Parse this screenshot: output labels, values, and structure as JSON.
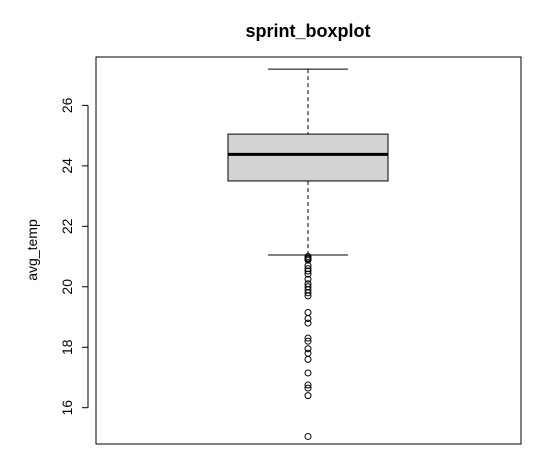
{
  "chart_data": {
    "type": "boxplot",
    "title": "sprint_boxplot",
    "xlabel": "",
    "ylabel": "avg_temp",
    "ylim": [
      14.8,
      27.6
    ],
    "yticks": [
      16,
      18,
      20,
      22,
      24,
      26
    ],
    "ytick_labels": [
      "16",
      "18",
      "20",
      "22",
      "24",
      "26"
    ],
    "grid": false,
    "box": {
      "whisker_low": 21.05,
      "q1": 23.5,
      "median": 24.38,
      "q3": 25.05,
      "whisker_high": 27.2,
      "fill_color": "#d3d3d3"
    },
    "outliers": [
      21.0,
      20.95,
      20.92,
      20.88,
      20.7,
      20.6,
      20.52,
      20.42,
      20.25,
      20.1,
      20.0,
      19.9,
      19.8,
      19.7,
      19.15,
      18.95,
      18.8,
      18.3,
      18.2,
      17.95,
      17.8,
      17.6,
      17.15,
      16.75,
      16.65,
      16.4,
      15.05
    ]
  }
}
